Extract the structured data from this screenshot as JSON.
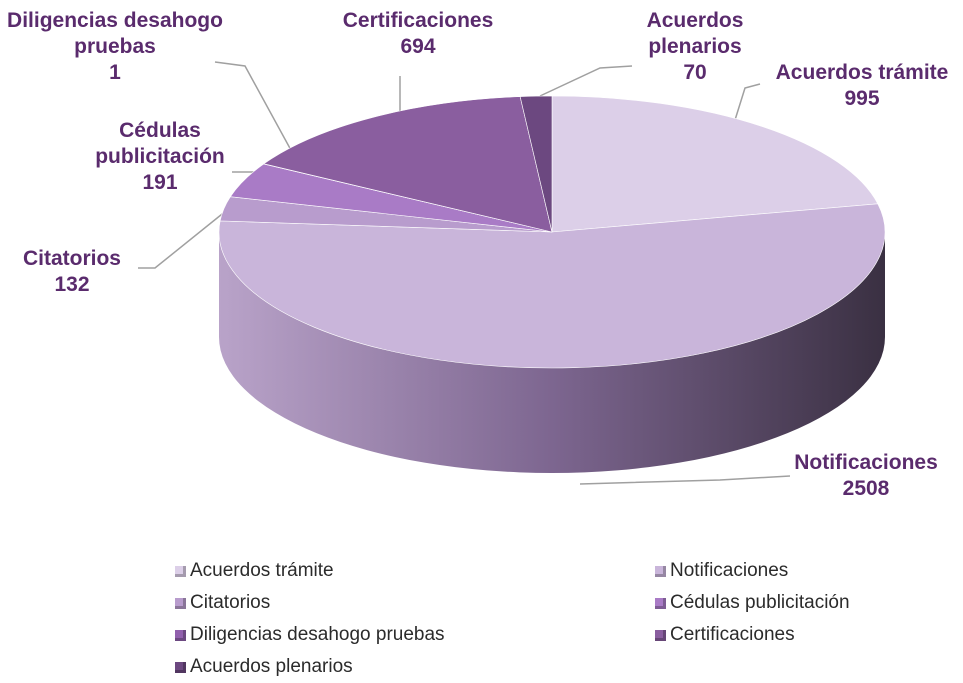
{
  "chart_data": {
    "type": "pie",
    "categories": [
      "Acuerdos trámite",
      "Notificaciones",
      "Citatorios",
      "Cédulas publicitación",
      "Diligencias desahogo pruebas",
      "Certificaciones",
      "Acuerdos plenarios"
    ],
    "values": [
      995,
      2508,
      132,
      191,
      1,
      694,
      70
    ],
    "colors": [
      "#dccfe8",
      "#c9b5da",
      "#b89ccd",
      "#a97bc6",
      "#9160ad",
      "#8a5e9f",
      "#6c4880"
    ]
  }
}
